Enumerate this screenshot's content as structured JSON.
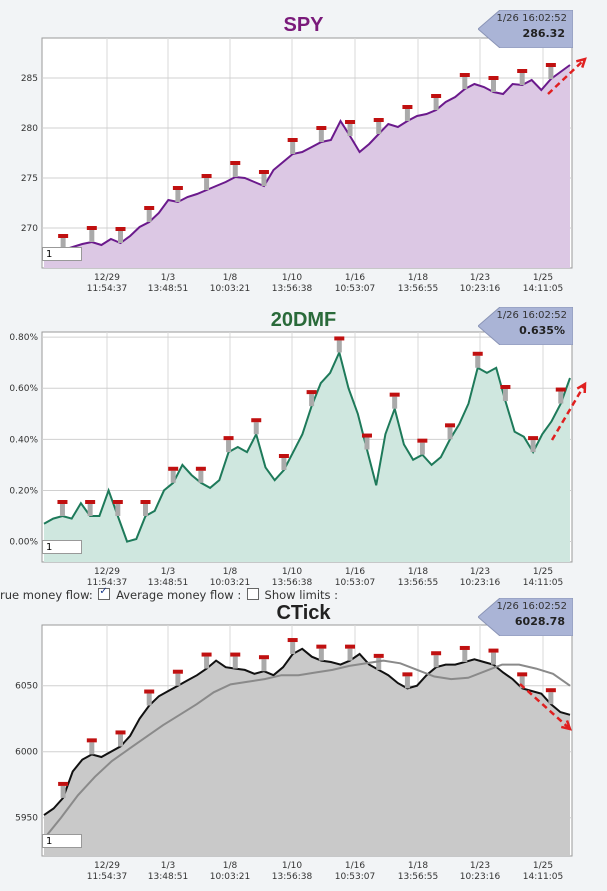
{
  "options": {
    "true_flow_label": "rue money flow:",
    "avg_flow_label": "Average money flow :",
    "show_limits_label": "Show limits :"
  },
  "input_value": "1",
  "chart_data": [
    {
      "type": "line",
      "title": "SPY",
      "title_color": "#7a1a7a",
      "line_color": "#6b1a8c",
      "fill_color": "#dcc8e4",
      "ylim": [
        266,
        289
      ],
      "yticks": [
        270,
        275,
        280,
        285
      ],
      "ytick_labels": [
        "270",
        "275",
        "280",
        "285"
      ],
      "xtick_dates": [
        "12/29",
        "1/3",
        "1/8",
        "1/10",
        "1/16",
        "1/18",
        "1/23",
        "1/25"
      ],
      "xtick_times": [
        "11:54:37",
        "13:48:51",
        "10:03:21",
        "13:56:38",
        "10:53:07",
        "13:56:55",
        "10:23:16",
        "14:11:05"
      ],
      "series": [
        {
          "values": [
            267.6,
            267.5,
            267.8,
            268.1,
            268.4,
            268.6,
            268.3,
            268.9,
            268.5,
            269.2,
            270.1,
            270.6,
            271.5,
            272.8,
            272.6,
            273.1,
            273.4,
            273.8,
            274.2,
            274.6,
            275.1,
            275.0,
            274.6,
            274.2,
            275.8,
            276.6,
            277.4,
            277.6,
            278.1,
            278.6,
            278.8,
            280.7,
            279.2,
            277.6,
            278.4,
            279.4,
            280.4,
            280.1,
            280.7,
            281.2,
            281.4,
            281.8,
            282.6,
            283.1,
            283.9,
            284.4,
            284.1,
            283.6,
            283.4,
            284.4,
            284.3,
            284.8,
            283.8,
            284.9,
            285.6,
            286.3
          ]
        }
      ],
      "last_time": "1/26 16:02:52",
      "last_value": "286.32"
    },
    {
      "type": "line",
      "title": "20DMF",
      "title_color": "#2a6a3a",
      "line_color": "#1e7a5a",
      "fill_color": "#cfe7df",
      "ylim": [
        -0.08,
        0.82
      ],
      "yticks": [
        0.0,
        0.2,
        0.4,
        0.6,
        0.8
      ],
      "ytick_labels": [
        "0.00%",
        "0.20%",
        "0.40%",
        "0.60%",
        "0.80%"
      ],
      "xtick_dates": [
        "12/29",
        "1/3",
        "1/8",
        "1/10",
        "1/16",
        "1/18",
        "1/23",
        "1/25"
      ],
      "xtick_times": [
        "11:54:37",
        "13:48:51",
        "10:03:21",
        "13:56:38",
        "10:53:07",
        "13:56:55",
        "10:23:16",
        "14:11:05"
      ],
      "series": [
        {
          "values": [
            0.07,
            0.09,
            0.1,
            0.09,
            0.15,
            0.1,
            0.1,
            0.2,
            0.1,
            0.0,
            0.01,
            0.1,
            0.12,
            0.2,
            0.23,
            0.3,
            0.26,
            0.23,
            0.21,
            0.24,
            0.35,
            0.37,
            0.35,
            0.42,
            0.29,
            0.24,
            0.28,
            0.35,
            0.42,
            0.53,
            0.62,
            0.66,
            0.74,
            0.6,
            0.5,
            0.36,
            0.22,
            0.42,
            0.52,
            0.38,
            0.32,
            0.34,
            0.3,
            0.33,
            0.4,
            0.46,
            0.54,
            0.68,
            0.66,
            0.68,
            0.55,
            0.43,
            0.41,
            0.35,
            0.42,
            0.47,
            0.54,
            0.64
          ]
        }
      ],
      "last_time": "1/26 16:02:52",
      "last_value": "0.635%"
    },
    {
      "type": "line",
      "title": "CTick",
      "title_color": "#222222",
      "line_color": "#111111",
      "fill_color": "#c9c9c9",
      "ylim": [
        5921,
        6096
      ],
      "yticks": [
        5950,
        6000,
        6050
      ],
      "ytick_labels": [
        "5950",
        "6000",
        "6050"
      ],
      "xtick_dates": [
        "12/29",
        "1/3",
        "1/8",
        "1/10",
        "1/16",
        "1/18",
        "1/23",
        "1/25"
      ],
      "xtick_times": [
        "11:54:37",
        "13:48:51",
        "10:03:21",
        "13:56:38",
        "10:53:07",
        "13:56:55",
        "10:23:16",
        "14:11:05"
      ],
      "series": [
        {
          "values": [
            5952,
            5957,
            5965,
            5985,
            5994,
            5998,
            5996,
            6000,
            6004,
            6012,
            6025,
            6035,
            6042,
            6046,
            6050,
            6054,
            6058,
            6063,
            6069,
            6064,
            6063,
            6062,
            6059,
            6061,
            6058,
            6064,
            6074,
            6078,
            6072,
            6069,
            6068,
            6066,
            6069,
            6074,
            6066,
            6062,
            6058,
            6052,
            6048,
            6050,
            6058,
            6064,
            6066,
            6066,
            6068,
            6070,
            6068,
            6066,
            6060,
            6055,
            6048,
            6046,
            6044,
            6036,
            6030,
            6028
          ]
        },
        {
          "values": [
            5934,
            5950,
            5967,
            5981,
            5993,
            6002,
            6011,
            6020,
            6028,
            6036,
            6045,
            6051,
            6053,
            6055,
            6058,
            6058,
            6060,
            6062,
            6065,
            6067,
            6069,
            6067,
            6062,
            6057,
            6055,
            6056,
            6061,
            6066,
            6066,
            6063,
            6059,
            6050
          ]
        }
      ],
      "last_time": "1/26 16:02:52",
      "last_value": "6028.78"
    }
  ]
}
